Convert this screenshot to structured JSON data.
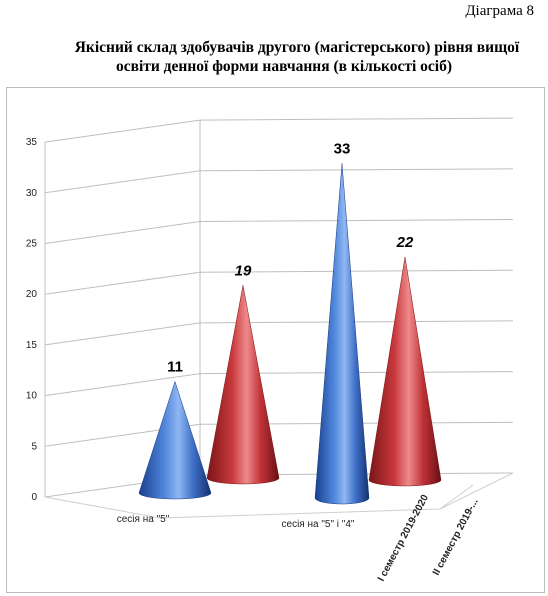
{
  "diagram_label": "Діаграма 8",
  "title_line1": "Якісний склад здобувачів другого (магістерського) рівня вищої",
  "title_line2": "освіти денної форми навчання (в кількості осіб)",
  "colors": {
    "series1": "#3b6bc4",
    "series2": "#c0393d",
    "grid": "#bfbfbf"
  },
  "chart_data": {
    "type": "bar",
    "style": "3d-cone",
    "categories": [
      "сесія на \"5\"",
      "сесія на \"5\" і \"4\""
    ],
    "series": [
      {
        "name": "I семестр 2019-2020",
        "values": [
          11,
          33
        ],
        "value_labels": [
          "11",
          "33"
        ]
      },
      {
        "name": "II семестр 2019-...",
        "values": [
          19,
          22
        ],
        "value_labels": [
          "19",
          "22"
        ]
      }
    ],
    "yticks": [
      "0",
      "5",
      "10",
      "15",
      "20",
      "25",
      "30",
      "35"
    ],
    "ylim": [
      0,
      35
    ],
    "grid": true
  }
}
